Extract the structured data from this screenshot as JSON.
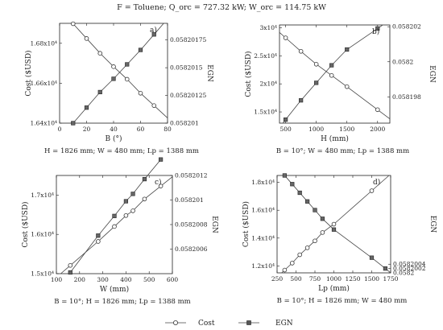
{
  "figure_title": "F = Toluene; Q_orc = 727.32 kW; W_orc = 114.75 kW",
  "legend": {
    "cost_label": "Cost",
    "egn_label": "EGN"
  },
  "colors": {
    "line": "#444444",
    "marker": "#333333",
    "frame": "#222222"
  },
  "chart_data": [
    {
      "id": "a",
      "type": "line",
      "panel_label": "a)",
      "caption": "H = 1826 mm; W = 480 mm; Lp = 1388 mm",
      "xlabel": "B (°)",
      "ylabel_left": "Cost ($USD)",
      "ylabel_right": "EGN",
      "xlim": [
        0,
        80
      ],
      "ylim_left": [
        16400,
        16900
      ],
      "ylim_right": [
        0.058201,
        0.0582019
      ],
      "xticks": [
        0,
        20,
        40,
        60,
        80
      ],
      "xtick_labels": [
        "0",
        "20",
        "40",
        "60",
        "80"
      ],
      "yticks_left": [
        16400,
        16600,
        16800
      ],
      "ytick_labels_left": [
        "1.64x10⁴",
        "1.66x10⁴",
        "1.68x10⁴"
      ],
      "yticks_right": [
        0.058201,
        0.05820125,
        0.0582015,
        0.05820175
      ],
      "ytick_labels_right": [
        "0.058201",
        "0.05820125",
        "0.0582015",
        "0.05820175"
      ],
      "series": [
        {
          "name": "Cost",
          "axis": "left",
          "marker": "circle",
          "x": [
            10,
            20,
            30,
            40,
            50,
            60,
            70
          ],
          "y": [
            16898,
            16824,
            16750,
            16683,
            16620,
            16550,
            16488
          ]
        },
        {
          "name": "EGN",
          "axis": "right",
          "marker": "square",
          "x": [
            10,
            20,
            30,
            40,
            50,
            60,
            70
          ],
          "y": [
            0.058201,
            0.05820114,
            0.05820128,
            0.0582014,
            0.05820153,
            0.05820166,
            0.0582018
          ]
        }
      ]
    },
    {
      "id": "b",
      "type": "line",
      "panel_label": "b)",
      "caption": "B = 10°; W = 480 mm; Lp = 1388 mm",
      "xlabel": "H (mm)",
      "ylabel_left": "Cost ($USD)",
      "ylabel_right": "EGN",
      "xlim": [
        400,
        2200
      ],
      "ylim_left": [
        13000,
        30500
      ],
      "ylim_right": [
        0.0581965,
        0.0582021
      ],
      "xticks": [
        500,
        1000,
        1500,
        2000
      ],
      "xtick_labels": [
        "500",
        "1000",
        "1500",
        "2000"
      ],
      "yticks_left": [
        15000,
        20000,
        25000,
        30000
      ],
      "ytick_labels_left": [
        "1.5x10⁴",
        "2x10⁴",
        "2.5x10⁴",
        "3x10⁴"
      ],
      "yticks_right": [
        0.058198,
        0.0582,
        0.058202
      ],
      "ytick_labels_right": [
        "0.058198",
        "0.0582",
        "0.058202"
      ],
      "series": [
        {
          "name": "Cost",
          "axis": "left",
          "marker": "circle",
          "x": [
            500,
            750,
            1000,
            1250,
            1500,
            2000
          ],
          "y": [
            28200,
            25800,
            23500,
            21500,
            19500,
            15400
          ]
        },
        {
          "name": "EGN",
          "axis": "right",
          "marker": "square",
          "x": [
            500,
            750,
            1000,
            1250,
            1500,
            2000
          ],
          "y": [
            0.0581967,
            0.0581978,
            0.0581988,
            0.0581998,
            0.0582007,
            0.0582019
          ]
        }
      ]
    },
    {
      "id": "c",
      "type": "line",
      "panel_label": "c)",
      "caption": "B = 10°; H = 1826 mm; Lp = 1388 mm",
      "xlabel": "W (mm)",
      "ylabel_left": "Cost ($USD)",
      "ylabel_right": "EGN",
      "xlim": [
        100,
        600
      ],
      "ylim_left": [
        15000,
        17500
      ],
      "ylim_right": [
        0.0582004,
        0.0582012
      ],
      "xticks": [
        100,
        200,
        300,
        400,
        500,
        600
      ],
      "xtick_labels": [
        "100",
        "200",
        "300",
        "400",
        "500",
        "600"
      ],
      "yticks_left": [
        15000,
        16000,
        17000
      ],
      "ytick_labels_left": [
        "1.5x10⁴",
        "1.6x10⁴",
        "1.7x10⁴"
      ],
      "yticks_right": [
        0.0582006,
        0.0582008,
        0.058201,
        0.0582012
      ],
      "ytick_labels_right": [
        "0.0582006",
        "0.0582008",
        "0.058201",
        "0.0582012"
      ],
      "series": [
        {
          "name": "Cost",
          "axis": "left",
          "marker": "circle",
          "x": [
            160,
            280,
            350,
            400,
            430,
            480,
            550
          ],
          "y": [
            15210,
            15820,
            16200,
            16480,
            16600,
            16900,
            17230
          ]
        },
        {
          "name": "EGN",
          "axis": "right",
          "marker": "square",
          "x": [
            160,
            280,
            350,
            400,
            430,
            480,
            550
          ],
          "y": [
            0.05820041,
            0.05820071,
            0.05820087,
            0.05820099,
            0.05820105,
            0.05820117,
            0.05820133
          ]
        }
      ]
    },
    {
      "id": "d",
      "type": "line",
      "panel_label": "d)",
      "caption": "B = 10°; H = 1826 mm; W = 480 mm",
      "xlabel": "Lp (mm)",
      "ylabel_left": "Cost ($USD)",
      "ylabel_right": "EGN",
      "xlim": [
        250,
        1750
      ],
      "ylim_left": [
        11500,
        18500
      ],
      "ylim_right": [
        0.0582,
        0.0582045
      ],
      "xticks": [
        250,
        500,
        750,
        1000,
        1250,
        1500,
        1750
      ],
      "xtick_labels": [
        "250",
        "500",
        "750",
        "1000",
        "1250",
        "1500",
        "1750"
      ],
      "yticks_left": [
        12000,
        14000,
        16000,
        18000
      ],
      "ytick_labels_left": [
        "1.2x10⁴",
        "1.4x10⁴",
        "1.6x10⁴",
        "1.8x10⁴"
      ],
      "yticks_right": [
        0.0582,
        0.0582002,
        0.0582004
      ],
      "ytick_labels_right": [
        "0.0582",
        "0.0582002",
        "0.0582004"
      ],
      "series": [
        {
          "name": "Cost",
          "axis": "left",
          "marker": "circle",
          "x": [
            350,
            450,
            550,
            650,
            750,
            850,
            1000,
            1500
          ],
          "y": [
            11700,
            12200,
            12800,
            13300,
            13800,
            14400,
            15000,
            17400
          ]
        },
        {
          "name": "EGN",
          "axis": "right",
          "marker": "square",
          "x": [
            350,
            450,
            550,
            650,
            750,
            850,
            1000,
            1500,
            1680
          ],
          "y": [
            0.0582045,
            0.0582041,
            0.0582037,
            0.0582033,
            0.0582029,
            0.0582025,
            0.058202,
            0.0582007,
            0.0582002
          ]
        }
      ]
    }
  ]
}
